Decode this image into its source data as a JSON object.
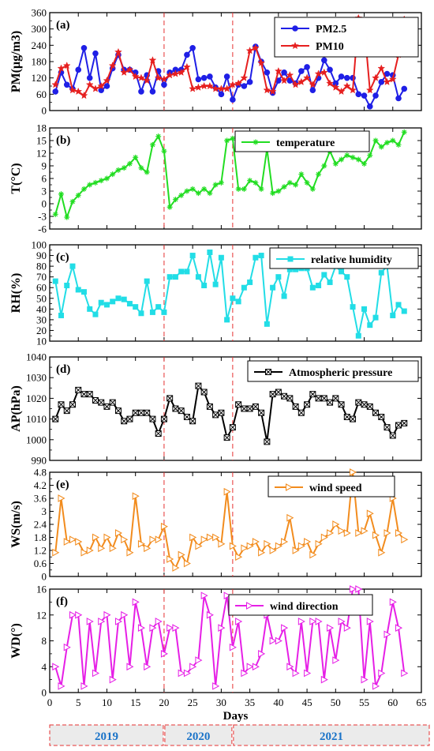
{
  "chart_data": [
    {
      "type": "line",
      "panel_label": "(a)",
      "ylabel": "PM(μg/m3)",
      "ylim": [
        0,
        360
      ],
      "yticks": [
        0,
        60,
        120,
        180,
        240,
        300,
        360
      ],
      "legend_position": "top-right",
      "series": [
        {
          "name": "PM2.5",
          "color": "#1f1fe6",
          "marker": "circle",
          "x": [
            1,
            2,
            3,
            4,
            5,
            6,
            7,
            8,
            9,
            10,
            11,
            12,
            13,
            14,
            15,
            16,
            17,
            18,
            19,
            20,
            21,
            22,
            23,
            24,
            25,
            26,
            27,
            28,
            29,
            30,
            31,
            32,
            33,
            34,
            35,
            36,
            37,
            38,
            39,
            40,
            41,
            42,
            43,
            44,
            45,
            46,
            47,
            48,
            49,
            50,
            51,
            52,
            53,
            54,
            55,
            56,
            57,
            58,
            59,
            60,
            61,
            62
          ],
          "values": [
            70,
            140,
            95,
            80,
            150,
            230,
            120,
            210,
            75,
            90,
            155,
            205,
            150,
            150,
            140,
            70,
            130,
            70,
            145,
            95,
            140,
            150,
            150,
            205,
            230,
            115,
            120,
            125,
            85,
            60,
            125,
            40,
            95,
            90,
            105,
            235,
            180,
            140,
            65,
            110,
            140,
            110,
            100,
            145,
            160,
            75,
            120,
            185,
            150,
            100,
            125,
            120,
            120,
            60,
            55,
            15,
            55,
            105,
            135,
            130,
            45,
            80
          ]
        },
        {
          "name": "PM10",
          "color": "#e61f1f",
          "marker": "star",
          "x": [
            1,
            2,
            3,
            4,
            5,
            6,
            7,
            8,
            9,
            10,
            11,
            12,
            13,
            14,
            15,
            16,
            17,
            18,
            19,
            20,
            21,
            22,
            23,
            24,
            25,
            26,
            27,
            28,
            29,
            30,
            31,
            32,
            33,
            34,
            35,
            36,
            37,
            38,
            39,
            40,
            41,
            42,
            43,
            44,
            45,
            46,
            47,
            48,
            49,
            50,
            51,
            52,
            53,
            54,
            55,
            56,
            57,
            58,
            59,
            60,
            61,
            62
          ],
          "values": [
            95,
            155,
            165,
            75,
            70,
            55,
            95,
            80,
            90,
            110,
            165,
            215,
            140,
            150,
            125,
            120,
            110,
            185,
            120,
            115,
            130,
            135,
            140,
            160,
            80,
            85,
            90,
            90,
            80,
            80,
            80,
            95,
            100,
            120,
            220,
            230,
            175,
            75,
            70,
            145,
            110,
            130,
            95,
            105,
            120,
            95,
            135,
            140,
            100,
            85,
            70,
            90,
            75,
            340,
            315,
            75,
            120,
            155,
            105,
            115,
            205,
            335
          ]
        }
      ]
    },
    {
      "type": "line",
      "panel_label": "(b)",
      "ylabel": "T(°C)",
      "ylim": [
        -6,
        18
      ],
      "yticks": [
        -6,
        -3,
        0,
        3,
        6,
        9,
        12,
        15,
        18
      ],
      "legend_position": "top-right",
      "series": [
        {
          "name": "temperature",
          "color": "#22dd22",
          "marker": "asterisk",
          "x": [
            1,
            2,
            3,
            4,
            5,
            6,
            7,
            8,
            9,
            10,
            11,
            12,
            13,
            14,
            15,
            16,
            17,
            18,
            19,
            20,
            21,
            22,
            23,
            24,
            25,
            26,
            27,
            28,
            29,
            30,
            31,
            32,
            33,
            34,
            35,
            36,
            37,
            38,
            39,
            40,
            41,
            42,
            43,
            44,
            45,
            46,
            47,
            48,
            49,
            50,
            51,
            52,
            53,
            54,
            55,
            56,
            57,
            58,
            59,
            60,
            61,
            62
          ],
          "values": [
            -2.5,
            2.3,
            -3.2,
            0.5,
            2,
            3.5,
            4.5,
            5,
            5.5,
            6,
            7,
            8,
            8.5,
            9.5,
            11,
            8.5,
            7.5,
            14,
            16,
            12.5,
            -0.8,
            1,
            2,
            3,
            3.5,
            2.5,
            3.5,
            2.5,
            4.5,
            5,
            15,
            15.5,
            3.5,
            3.5,
            5.5,
            5,
            3.5,
            13,
            2.5,
            3,
            4,
            5,
            4.5,
            7,
            5,
            3.5,
            7,
            9,
            12.5,
            9.5,
            10.5,
            11.5,
            11,
            10.5,
            9.5,
            11.5,
            15,
            13.5,
            14.5,
            15,
            14,
            17
          ]
        }
      ]
    },
    {
      "type": "line",
      "panel_label": "(c)",
      "ylabel": "RH(%)",
      "ylim": [
        10,
        100
      ],
      "yticks": [
        10,
        20,
        30,
        40,
        50,
        60,
        70,
        80,
        90,
        100
      ],
      "legend_position": "top-right",
      "series": [
        {
          "name": "relative humidity",
          "color": "#22dde6",
          "marker": "square",
          "x": [
            1,
            2,
            3,
            4,
            5,
            6,
            7,
            8,
            9,
            10,
            11,
            12,
            13,
            14,
            15,
            16,
            17,
            18,
            19,
            20,
            21,
            22,
            23,
            24,
            25,
            26,
            27,
            28,
            29,
            30,
            31,
            32,
            33,
            34,
            35,
            36,
            37,
            38,
            39,
            40,
            41,
            42,
            43,
            44,
            45,
            46,
            47,
            48,
            49,
            50,
            51,
            52,
            53,
            54,
            55,
            56,
            57,
            58,
            59,
            60,
            61,
            62
          ],
          "values": [
            66,
            34,
            62,
            80,
            58,
            56,
            40,
            35,
            46,
            44,
            47,
            50,
            49,
            45,
            42,
            36,
            66,
            37,
            42,
            37,
            70,
            70,
            75,
            75,
            90,
            70,
            62,
            93,
            63,
            88,
            30,
            50,
            47,
            60,
            65,
            88,
            90,
            26,
            60,
            70,
            52,
            77,
            77,
            78,
            78,
            60,
            62,
            72,
            65,
            80,
            75,
            70,
            42,
            15,
            40,
            25,
            32,
            74,
            80,
            34,
            44,
            38
          ]
        }
      ]
    },
    {
      "type": "line",
      "panel_label": "(d)",
      "ylabel": "AP(hPa)",
      "ylim": [
        990,
        1040
      ],
      "yticks": [
        990,
        1000,
        1010,
        1020,
        1030,
        1040
      ],
      "legend_position": "top-right",
      "series": [
        {
          "name": "Atmospheric pressure",
          "color": "#000000",
          "marker": "xsquare",
          "x": [
            1,
            2,
            3,
            4,
            5,
            6,
            7,
            8,
            9,
            10,
            11,
            12,
            13,
            14,
            15,
            16,
            17,
            18,
            19,
            20,
            21,
            22,
            23,
            24,
            25,
            26,
            27,
            28,
            29,
            30,
            31,
            32,
            33,
            34,
            35,
            36,
            37,
            38,
            39,
            40,
            41,
            42,
            43,
            44,
            45,
            46,
            47,
            48,
            49,
            50,
            51,
            52,
            53,
            54,
            55,
            56,
            57,
            58,
            59,
            60,
            61,
            62
          ],
          "values": [
            1010,
            1017,
            1014,
            1017,
            1024,
            1022,
            1022,
            1019,
            1018,
            1016,
            1018,
            1014,
            1009,
            1010,
            1013,
            1013,
            1013,
            1010,
            1003,
            1010,
            1020,
            1015,
            1014,
            1011,
            1009,
            1026,
            1023,
            1016,
            1012,
            1013,
            1001,
            1006,
            1017,
            1015,
            1015,
            1016,
            1013,
            999,
            1022,
            1023,
            1021,
            1020,
            1016,
            1013,
            1017,
            1022,
            1020,
            1020,
            1018,
            1020,
            1017,
            1011,
            1010,
            1018,
            1017,
            1016,
            1013,
            1011,
            1006,
            1002,
            1007,
            1008
          ]
        }
      ]
    },
    {
      "type": "line",
      "panel_label": "(e)",
      "ylabel": "WS(m/s)",
      "ylim": [
        0,
        4.8
      ],
      "yticks": [
        0.0,
        0.6,
        1.2,
        1.8,
        2.4,
        3.0,
        3.6,
        4.2,
        4.8
      ],
      "legend_position": "top-right",
      "series": [
        {
          "name": "wind speed",
          "color": "#f28c1e",
          "marker": "triangle-right",
          "x": [
            1,
            2,
            3,
            4,
            5,
            6,
            7,
            8,
            9,
            10,
            11,
            12,
            13,
            14,
            15,
            16,
            17,
            18,
            19,
            20,
            21,
            22,
            23,
            24,
            25,
            26,
            27,
            28,
            29,
            30,
            31,
            32,
            33,
            34,
            35,
            36,
            37,
            38,
            39,
            40,
            41,
            42,
            43,
            44,
            45,
            46,
            47,
            48,
            49,
            50,
            51,
            52,
            53,
            54,
            55,
            56,
            57,
            58,
            59,
            60,
            61,
            62
          ],
          "values": [
            1.1,
            3.6,
            1.6,
            1.7,
            1.6,
            1.1,
            1.2,
            1.8,
            1.3,
            1.8,
            1.3,
            2.0,
            1.7,
            1.1,
            3.7,
            1.5,
            1.3,
            1.7,
            1.7,
            2.3,
            0.8,
            0.4,
            1.0,
            0.6,
            1.8,
            1.4,
            1.7,
            1.8,
            1.8,
            1.5,
            3.9,
            1.4,
            0.9,
            1.3,
            1.4,
            1.6,
            1.1,
            1.5,
            1.2,
            1.4,
            1.6,
            2.7,
            1.2,
            1.4,
            1.6,
            1.0,
            1.5,
            1.8,
            2.0,
            2.4,
            2.1,
            2.0,
            4.8,
            2.0,
            2.1,
            2.9,
            1.9,
            1.1,
            2.0,
            3.6,
            2.0,
            1.7
          ]
        }
      ]
    },
    {
      "type": "line",
      "panel_label": "(f)",
      "ylabel": "WD(°)",
      "ylim": [
        0,
        16
      ],
      "yticks": [
        0,
        4,
        8,
        12,
        16
      ],
      "legend_position": "top-right",
      "series": [
        {
          "name": "wind direction",
          "color": "#e61fe6",
          "marker": "triangle-right",
          "x": [
            1,
            2,
            3,
            4,
            5,
            6,
            7,
            8,
            9,
            10,
            11,
            12,
            13,
            14,
            15,
            16,
            17,
            18,
            19,
            20,
            21,
            22,
            23,
            24,
            25,
            26,
            27,
            28,
            29,
            30,
            31,
            32,
            33,
            34,
            35,
            36,
            37,
            38,
            39,
            40,
            41,
            42,
            43,
            44,
            45,
            46,
            47,
            48,
            49,
            50,
            51,
            52,
            53,
            54,
            55,
            56,
            57,
            58,
            59,
            60,
            61,
            62
          ],
          "values": [
            4,
            1,
            7,
            12,
            12,
            1,
            11,
            3,
            11,
            12,
            2,
            11,
            12,
            4,
            14,
            10,
            4,
            10,
            11,
            6,
            10,
            10,
            3,
            3,
            4,
            5,
            15,
            12,
            1,
            10,
            15,
            7,
            11,
            3,
            4,
            4,
            6,
            12,
            8,
            8,
            10,
            4,
            3,
            11,
            3,
            11,
            11,
            2,
            10,
            5,
            11,
            10,
            16,
            16,
            2,
            11,
            1,
            3,
            9,
            14,
            10,
            3
          ]
        }
      ]
    }
  ],
  "x_axis": {
    "label": "Days",
    "xlim": [
      0,
      65
    ],
    "ticks": [
      0,
      5,
      10,
      15,
      20,
      25,
      30,
      35,
      40,
      45,
      50,
      55,
      60,
      65
    ]
  },
  "dividers": [
    20,
    32
  ],
  "years": [
    {
      "label": "2019",
      "start": 0,
      "end": 20
    },
    {
      "label": "2020",
      "start": 20,
      "end": 32
    },
    {
      "label": "2021",
      "start": 32,
      "end": 65
    }
  ]
}
